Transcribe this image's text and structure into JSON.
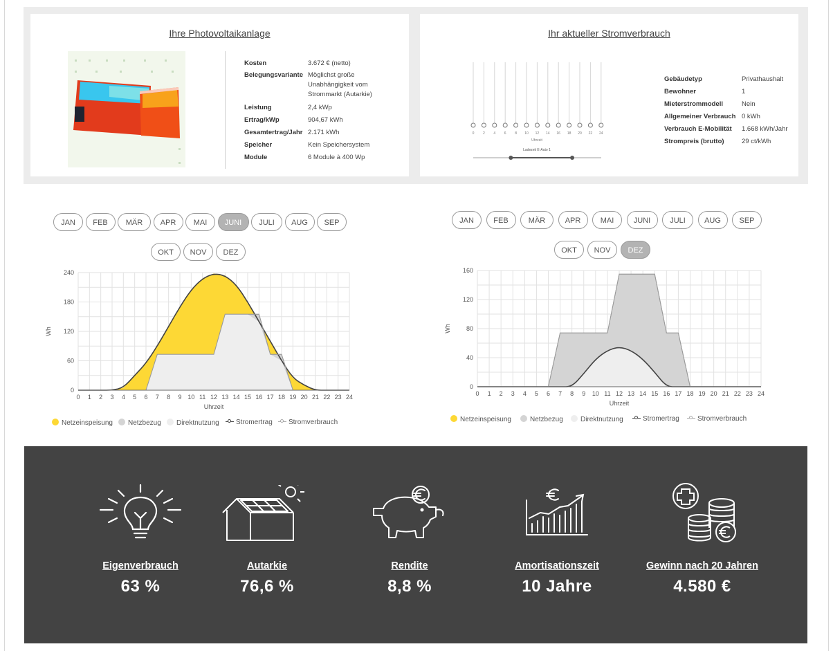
{
  "pv": {
    "title": "Ihre Photovoltaikanlage",
    "rows": [
      {
        "k": "Kosten",
        "v": "3.672 € (netto)"
      },
      {
        "k": "Belegungsvariante",
        "v": [
          "Möglichst große",
          "Unabhängigkeit vom",
          "Strommarkt (Autarkie)"
        ]
      },
      {
        "k": "Leistung",
        "v": "2,4 kWp"
      },
      {
        "k": "Ertrag/kWp",
        "v": "904,67 kWh"
      },
      {
        "k": "Gesamtertrag/Jahr",
        "v": "2.171 kWh"
      },
      {
        "k": "Speicher",
        "v": "Kein Speichersystem"
      },
      {
        "k": "Module",
        "v": "6 Module à 400 Wp"
      }
    ]
  },
  "consumption": {
    "title": "Ihr aktueller Stromverbrauch",
    "rows": [
      {
        "k": "Gebäudetyp",
        "v": "Privathaushalt"
      },
      {
        "k": "Bewohner",
        "v": "1"
      },
      {
        "k": "Mieterstrommodell",
        "v": "Nein"
      },
      {
        "k": "Allgemeiner Verbrauch",
        "v": "0 kWh"
      },
      {
        "k": "Verbrauch E-Mobilität",
        "v": "1.668 kWh/Jahr"
      },
      {
        "k": "Strompreis (brutto)",
        "v": "29 ct/kWh"
      }
    ],
    "slider_ticks": [
      "0",
      "2",
      "4",
      "6",
      "8",
      "10",
      "12",
      "14",
      "16",
      "18",
      "20",
      "22",
      "24"
    ],
    "slider_xlabel": "Uhrzeit",
    "range_label": "Ladezeit E-Auto 1",
    "range_from_h": 6,
    "range_to_h": 18
  },
  "month_picker_left": {
    "months": [
      "JAN",
      "FEB",
      "MÄR",
      "APR",
      "MAI",
      "JUNI",
      "JULI",
      "AUG",
      "SEP",
      "OKT",
      "NOV",
      "DEZ"
    ],
    "selected": "JUNI"
  },
  "month_picker_right": {
    "months": [
      "JAN",
      "FEB",
      "MÄR",
      "APR",
      "MAI",
      "JUNI",
      "JULI",
      "AUG",
      "SEP",
      "OKT",
      "NOV",
      "DEZ"
    ],
    "selected": "DEZ"
  },
  "legend": {
    "items": [
      "Netzeinspeisung",
      "Netzbezug",
      "Direktnutzung",
      "Stromertrag",
      "Stromverbrauch"
    ]
  },
  "colors": {
    "netzeinspeisung": "#fdd835",
    "netzbezug": "#d4d4d4",
    "direktnutzung": "#eeeeee",
    "stromertrag": "#444444",
    "stromverbrauch": "#aaaaaa",
    "dark_band": "#434343"
  },
  "chart_data": [
    {
      "type": "area",
      "month": "JUNI",
      "xlabel": "Uhrzeit",
      "ylabel": "Wh",
      "ylim": [
        0,
        240
      ],
      "yticks": [
        0,
        60,
        120,
        180,
        240
      ],
      "x": [
        0,
        1,
        2,
        3,
        4,
        5,
        6,
        7,
        8,
        9,
        10,
        11,
        12,
        13,
        14,
        15,
        16,
        17,
        18,
        19,
        20,
        21,
        22,
        23,
        24
      ],
      "series": [
        {
          "name": "Stromertrag",
          "values": [
            0,
            0,
            0,
            0,
            5,
            30,
            55,
            90,
            130,
            170,
            205,
            228,
            238,
            234,
            215,
            180,
            140,
            100,
            60,
            25,
            10,
            0,
            0,
            0,
            0
          ]
        },
        {
          "name": "Stromverbrauch",
          "values": [
            0,
            0,
            0,
            0,
            0,
            0,
            0,
            73,
            73,
            73,
            73,
            73,
            73,
            155,
            155,
            155,
            155,
            73,
            73,
            0,
            0,
            0,
            0,
            0,
            0
          ]
        }
      ],
      "grid": true
    },
    {
      "type": "area",
      "month": "DEZ",
      "xlabel": "Uhrzeit",
      "ylabel": "Wh",
      "ylim": [
        0,
        160
      ],
      "yticks": [
        0,
        40,
        80,
        120,
        160
      ],
      "x": [
        0,
        1,
        2,
        3,
        4,
        5,
        6,
        7,
        8,
        9,
        10,
        11,
        12,
        13,
        14,
        15,
        16,
        17,
        18,
        19,
        20,
        21,
        22,
        23,
        24
      ],
      "series": [
        {
          "name": "Stromertrag",
          "values": [
            0,
            0,
            0,
            0,
            0,
            0,
            0,
            0,
            0,
            18,
            38,
            50,
            55,
            50,
            38,
            20,
            0,
            0,
            0,
            0,
            0,
            0,
            0,
            0,
            0
          ]
        },
        {
          "name": "Stromverbrauch",
          "values": [
            0,
            0,
            0,
            0,
            0,
            0,
            0,
            74,
            74,
            74,
            74,
            74,
            155,
            155,
            155,
            155,
            74,
            74,
            0,
            0,
            0,
            0,
            0,
            0,
            0
          ]
        }
      ],
      "grid": true
    }
  ],
  "kpis": [
    {
      "label": "Eigenverbrauch",
      "value": "63 %",
      "icon": "lightbulb-icon"
    },
    {
      "label": "Autarkie",
      "value": "76,6 %",
      "icon": "solar-house-icon"
    },
    {
      "label": "Rendite",
      "value": "8,8 %",
      "icon": "piggy-bank-euro-icon"
    },
    {
      "label": "Amortisationszeit",
      "value": "10 Jahre",
      "icon": "euro-growth-chart-icon"
    },
    {
      "label": "Gewinn nach 20 Jahren",
      "value": "4.580 €",
      "icon": "coins-plus-icon"
    }
  ]
}
